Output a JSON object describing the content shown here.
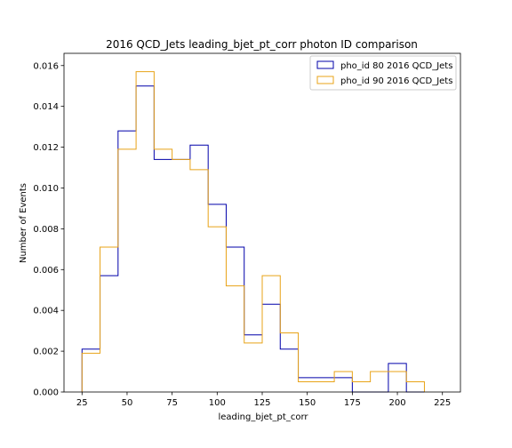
{
  "chart_data": {
    "type": "histogram-step",
    "title": "2016 QCD_Jets leading_bjet_pt_corr photon ID comparison",
    "xlabel": "leading_bjet_pt_corr",
    "ylabel": "Number of Events",
    "xlim": [
      15,
      235
    ],
    "ylim": [
      0,
      0.0166
    ],
    "xticks": [
      25,
      50,
      75,
      100,
      125,
      150,
      175,
      200,
      225
    ],
    "xtick_labels": [
      "25",
      "50",
      "75",
      "100",
      "125",
      "150",
      "175",
      "200",
      "225"
    ],
    "yticks": [
      0.0,
      0.002,
      0.004,
      0.006,
      0.008,
      0.01,
      0.012,
      0.014,
      0.016
    ],
    "ytick_labels": [
      "0.000",
      "0.002",
      "0.004",
      "0.006",
      "0.008",
      "0.010",
      "0.012",
      "0.014",
      "0.016"
    ],
    "bin_edges": [
      25,
      35,
      45,
      55,
      65,
      75,
      85,
      95,
      105,
      115,
      125,
      135,
      145,
      155,
      165,
      175,
      185,
      195,
      205,
      215
    ],
    "legend_position": "top-right",
    "grid": false,
    "series": [
      {
        "name": "pho_id 80 2016 QCD_Jets",
        "color": "#0000aa",
        "values": [
          0.0021,
          0.0057,
          0.0128,
          0.015,
          0.0114,
          0.0114,
          0.0121,
          0.0092,
          0.0071,
          0.0028,
          0.0043,
          0.0021,
          0.0007,
          0.0007,
          0.0007,
          0.0,
          0.0,
          0.0014,
          0.0
        ]
      },
      {
        "name": "pho_id 90 2016 QCD_Jets",
        "color": "#e8a317",
        "values": [
          0.0019,
          0.0071,
          0.0119,
          0.0157,
          0.0119,
          0.0114,
          0.0109,
          0.0081,
          0.0052,
          0.0024,
          0.0057,
          0.0029,
          0.0005,
          0.0005,
          0.001,
          0.0005,
          0.001,
          0.001,
          0.0005
        ]
      }
    ]
  }
}
